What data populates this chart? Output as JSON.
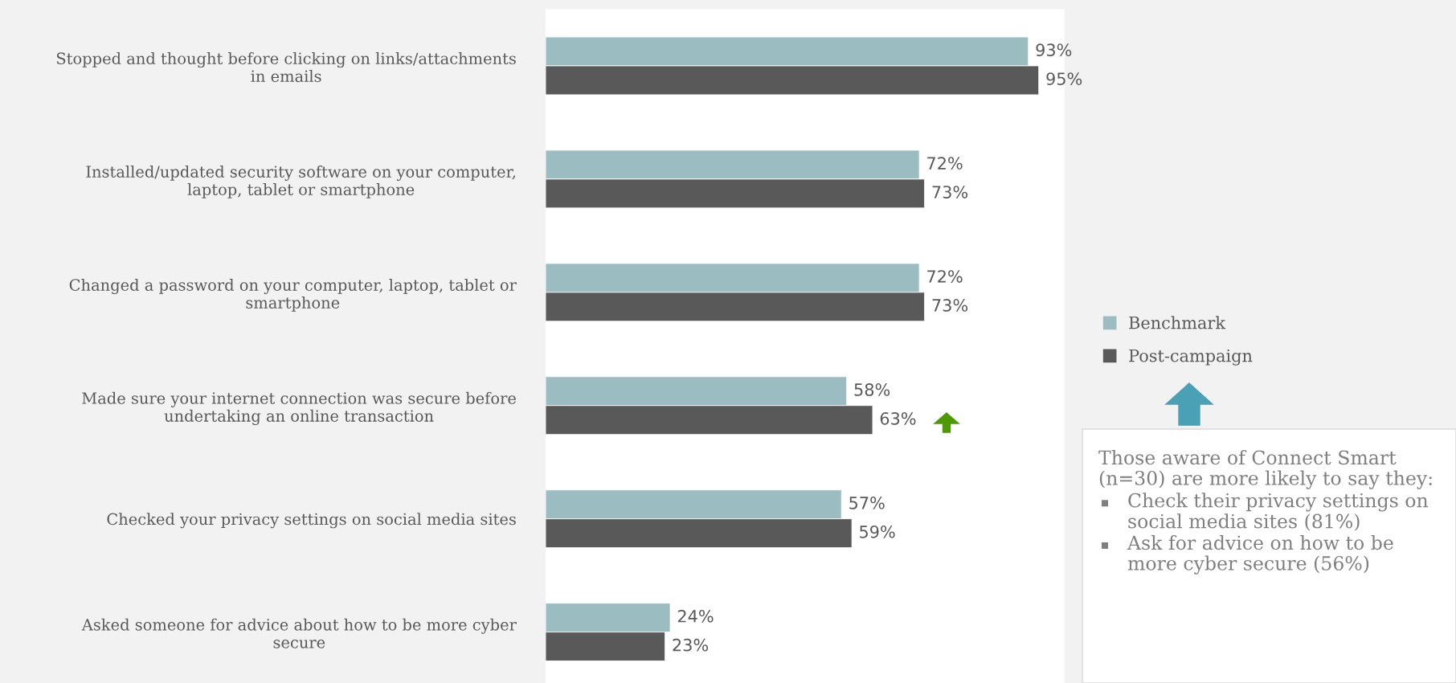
{
  "chart_data": {
    "type": "bar",
    "orientation": "horizontal",
    "categories": [
      "Stopped and thought before clicking on links/attachments in emails",
      "Installed/updated security software on your computer, laptop, tablet or smartphone",
      "Changed a password on your computer, laptop, tablet or smartphone",
      "Made sure your internet connection was secure before undertaking an online transaction",
      "Checked your privacy settings on social media sites",
      "Asked someone for advice about how to be more cyber secure"
    ],
    "series": [
      {
        "name": "Benchmark",
        "color": "#9bbcc1",
        "values": [
          93,
          72,
          72,
          58,
          57,
          24
        ],
        "value_labels": [
          "93%",
          "72%",
          "72%",
          "58%",
          "57%",
          "24%"
        ]
      },
      {
        "name": "Post-campaign",
        "color": "#595959",
        "values": [
          95,
          73,
          73,
          63,
          59,
          23
        ],
        "value_labels": [
          "95%",
          "73%",
          "73%",
          "63%",
          "59%",
          "23%"
        ]
      }
    ],
    "legend": "right",
    "grid": false,
    "tick_labels": "y",
    "annotations": [
      "Those aware of Connect Smart (n=30) are more likely to say they:",
      "Check their privacy settings on social media sites (81%)",
      "Ask for advice on how to be more cyber secure (56%)"
    ]
  }
}
